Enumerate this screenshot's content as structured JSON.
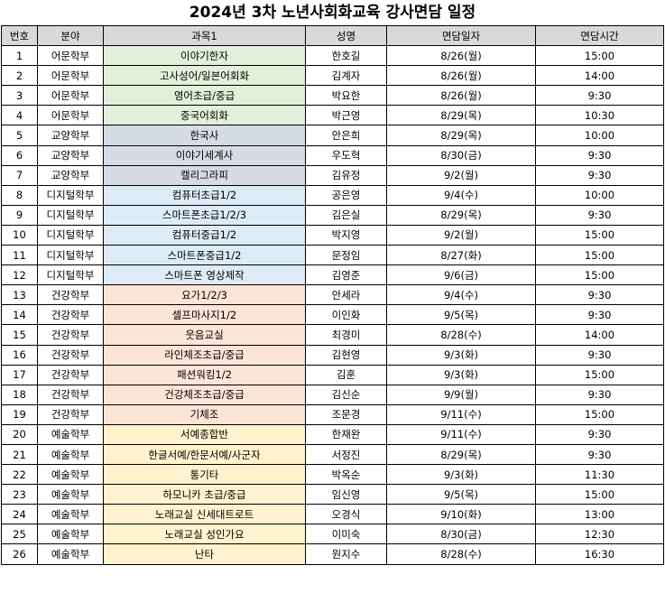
{
  "title": "2024년 3차 노년사회화교육 강사면담 일정",
  "headers": [
    "번호",
    "분야",
    "과목1",
    "성명",
    "면담일자",
    "면담시간"
  ],
  "category_colors": {
    "어문학부": "#e2efda",
    "교양학부": "#d6dce4",
    "디지털학부": "#ddebf7",
    "건강학부": "#fce4d6",
    "예술학부": "#fff2cc"
  },
  "rows": [
    {
      "no": "1",
      "field": "어문학부",
      "course": "이야기한자",
      "name": "한호길",
      "date": "8/26(월)",
      "time": "15:00"
    },
    {
      "no": "2",
      "field": "어문학부",
      "course": "고사성어/일본어회화",
      "name": "김계자",
      "date": "8/26(월)",
      "time": "14:00"
    },
    {
      "no": "3",
      "field": "어문학부",
      "course": "영어초급/중급",
      "name": "박요한",
      "date": "8/26(월)",
      "time": "9:30"
    },
    {
      "no": "4",
      "field": "어문학부",
      "course": "중국어회화",
      "name": "박근영",
      "date": "8/29(목)",
      "time": "10:30"
    },
    {
      "no": "5",
      "field": "교양학부",
      "course": "한국사",
      "name": "안은희",
      "date": "8/29(목)",
      "time": "10:00"
    },
    {
      "no": "6",
      "field": "교양학부",
      "course": "이야기세계사",
      "name": "우도혁",
      "date": "8/30(금)",
      "time": "9:30"
    },
    {
      "no": "7",
      "field": "교양학부",
      "course": "캘리그라피",
      "name": "김유정",
      "date": "9/2(월)",
      "time": "9:30"
    },
    {
      "no": "8",
      "field": "디지털학부",
      "course": "컴퓨터초급1/2",
      "name": "공은영",
      "date": "9/4(수)",
      "time": "10:00"
    },
    {
      "no": "9",
      "field": "디지털학부",
      "course": "스마트폰초급1/2/3",
      "name": "김은실",
      "date": "8/29(목)",
      "time": "9:30"
    },
    {
      "no": "10",
      "field": "디지털학부",
      "course": "컴퓨터중급1/2",
      "name": "박지영",
      "date": "9/2(월)",
      "time": "15:00"
    },
    {
      "no": "11",
      "field": "디지털학부",
      "course": "스마트폰중급1/2",
      "name": "문정임",
      "date": "8/27(화)",
      "time": "15:00"
    },
    {
      "no": "12",
      "field": "디지털학부",
      "course": "스마트폰 영상제작",
      "name": "김영준",
      "date": "9/6(금)",
      "time": "15:00"
    },
    {
      "no": "13",
      "field": "건강학부",
      "course": "요가1/2/3",
      "name": "안세라",
      "date": "9/4(수)",
      "time": "9:30"
    },
    {
      "no": "14",
      "field": "건강학부",
      "course": "셀프마사지1/2",
      "name": "이인화",
      "date": "9/5(목)",
      "time": "9:30"
    },
    {
      "no": "15",
      "field": "건강학부",
      "course": "웃음교실",
      "name": "최경미",
      "date": "8/28(수)",
      "time": "14:00"
    },
    {
      "no": "16",
      "field": "건강학부",
      "course": "라인체조초급/중급",
      "name": "김현영",
      "date": "9/3(화)",
      "time": "9:30"
    },
    {
      "no": "17",
      "field": "건강학부",
      "course": "패션워킹1/2",
      "name": "김훈",
      "date": "9/3(화)",
      "time": "15:00"
    },
    {
      "no": "18",
      "field": "건강학부",
      "course": "건강체조초급/중급",
      "name": "김신순",
      "date": "9/9(월)",
      "time": "9:30"
    },
    {
      "no": "19",
      "field": "건강학부",
      "course": "기체조",
      "name": "조문경",
      "date": "9/11(수)",
      "time": "15:00"
    },
    {
      "no": "20",
      "field": "예술학부",
      "course": "서예종합반",
      "name": "한재완",
      "date": "9/11(수)",
      "time": "9:30"
    },
    {
      "no": "21",
      "field": "예술학부",
      "course": "한글서예/한문서예/사군자",
      "name": "서정진",
      "date": "8/29(목)",
      "time": "9:30"
    },
    {
      "no": "22",
      "field": "예술학부",
      "course": "통기타",
      "name": "박옥순",
      "date": "9/3(화)",
      "time": "11:30"
    },
    {
      "no": "23",
      "field": "예술학부",
      "course": "하모니카 초급/중급",
      "name": "임신영",
      "date": "9/5(목)",
      "time": "15:00"
    },
    {
      "no": "24",
      "field": "예술학부",
      "course": "노래교실 신세대트로트",
      "name": "오경식",
      "date": "9/10(화)",
      "time": "13:00"
    },
    {
      "no": "25",
      "field": "예술학부",
      "course": "노래교실 성인가요",
      "name": "이미숙",
      "date": "8/30(금)",
      "time": "12:30"
    },
    {
      "no": "26",
      "field": "예술학부",
      "course": "난타",
      "name": "원지수",
      "date": "8/28(수)",
      "time": "16:30"
    }
  ]
}
